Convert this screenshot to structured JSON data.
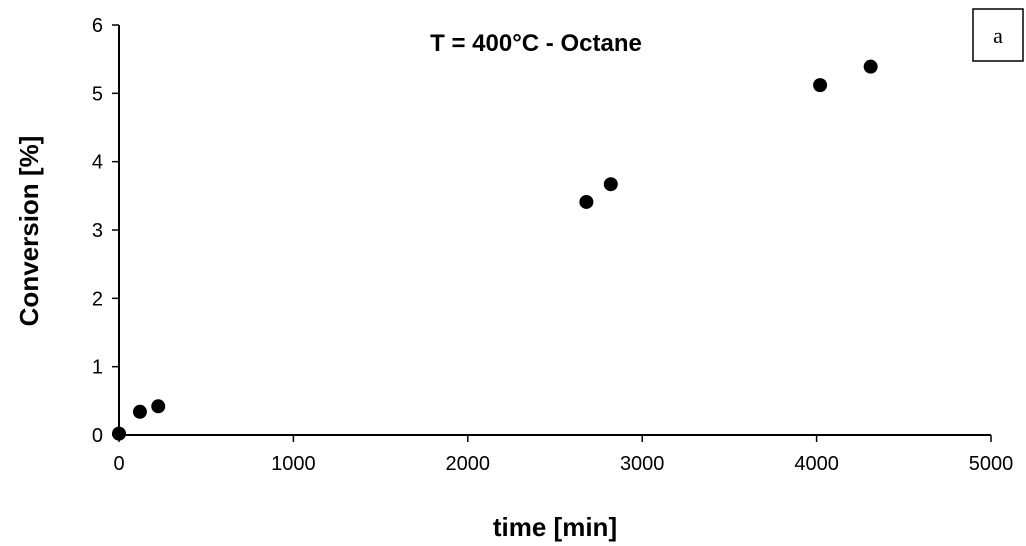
{
  "chart_data": {
    "type": "scatter",
    "title": "T = 400°C - Octane",
    "panel_label": "a",
    "xlabel": "time [min]",
    "ylabel": "Conversion [%]",
    "xlim": [
      0,
      5000
    ],
    "ylim": [
      0,
      6
    ],
    "x_ticks": [
      0,
      1000,
      2000,
      3000,
      4000,
      5000
    ],
    "y_ticks": [
      0,
      1,
      2,
      3,
      4,
      5,
      6
    ],
    "grid": false,
    "marker_color": "#000000",
    "series": [
      {
        "x": [
          0,
          120,
          225,
          2680,
          2820,
          4020,
          4310
        ],
        "y": [
          0.02,
          0.34,
          0.42,
          3.41,
          3.67,
          5.12,
          5.39
        ]
      }
    ]
  }
}
